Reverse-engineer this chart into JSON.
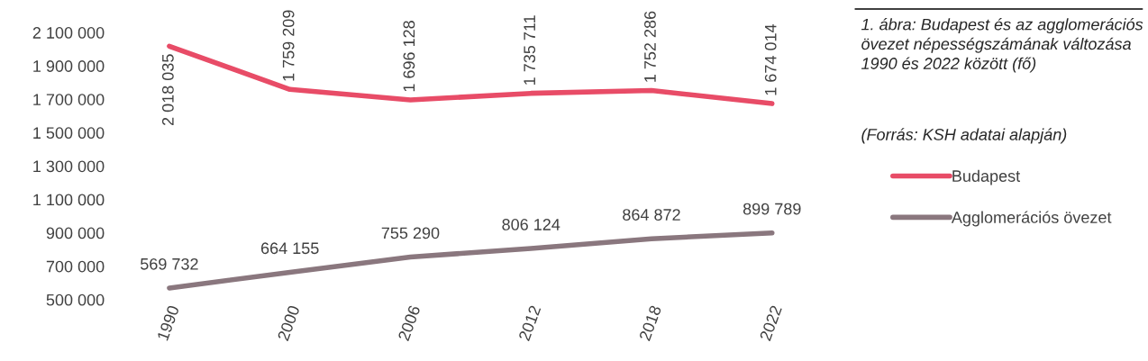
{
  "chart_data": {
    "type": "line",
    "title": "1. ábra: Budapest és az agglomerációs övezet népességszámának változása 1990 és 2022 között (fő)",
    "annotations": [
      "(Forrás: KSH adatai alapján)"
    ],
    "categories": [
      "1990",
      "2000",
      "2006",
      "2012",
      "2018",
      "2022"
    ],
    "series": [
      {
        "name": "Budapest",
        "color": "#e84c67",
        "values": [
          2018035,
          1759209,
          1696128,
          1735711,
          1752286,
          1674014
        ],
        "value_labels": [
          "2 018 035",
          "1 759 209",
          "1 696 128",
          "1 735 711",
          "1 752 286",
          "1 674 014"
        ]
      },
      {
        "name": "Agglomerációs övezet",
        "color": "#8a777e",
        "values": [
          569732,
          664155,
          755290,
          806124,
          864872,
          899789
        ],
        "value_labels": [
          "569 732",
          "664 155",
          "755 290",
          "806 124",
          "864 872",
          "899 789"
        ]
      }
    ],
    "ylim": [
      500000,
      2100000
    ],
    "yticks": [
      {
        "value": 500000,
        "label": "500 000"
      },
      {
        "value": 700000,
        "label": "700 000"
      },
      {
        "value": 900000,
        "label": "900 000"
      },
      {
        "value": 1100000,
        "label": "1 100 000"
      },
      {
        "value": 1300000,
        "label": "1 300 000"
      },
      {
        "value": 1500000,
        "label": "1 500 000"
      },
      {
        "value": 1700000,
        "label": "1 700 000"
      },
      {
        "value": 1900000,
        "label": "1 900 000"
      },
      {
        "value": 2100000,
        "label": "2 100 000"
      }
    ],
    "legend": "right"
  }
}
